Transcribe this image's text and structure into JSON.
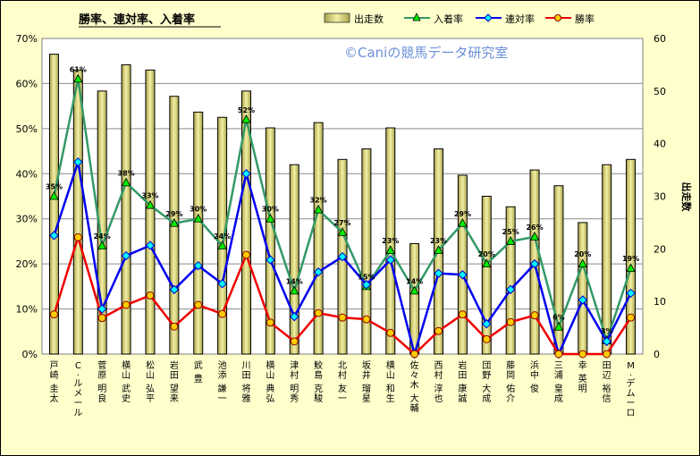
{
  "chart_data": {
    "type": "bar",
    "title": "勝率、連対率、入着率",
    "watermark": "©Caniの競馬データ研究室",
    "y2label": "出走数",
    "ylim": [
      0,
      70
    ],
    "y2lim": [
      0,
      60
    ],
    "yticks": [
      "0%",
      "10%",
      "20%",
      "30%",
      "40%",
      "50%",
      "60%",
      "70%"
    ],
    "y2ticks": [
      "0",
      "10",
      "20",
      "30",
      "40",
      "50",
      "60"
    ],
    "legend_position": "top",
    "categories": [
      "戸崎 圭太",
      "C. ルメール",
      "菅原 明良",
      "横山 武史",
      "松山 弘平",
      "岩田 望来",
      "武 豊",
      "池添 謙一",
      "川田 将雅",
      "横山 典弘",
      "津村 明秀",
      "鮫島 克駿",
      "北村 友一",
      "坂井 瑠星",
      "横山 和生",
      "佐々木 大輔",
      "西村 淳也",
      "岩田 康誠",
      "団野 大成",
      "藤岡 佑介",
      "浜中 俊",
      "三浦 皇成",
      "幸 英明",
      "田辺 裕信",
      "M. デムーロ"
    ],
    "series": [
      {
        "name": "出走数",
        "type": "bar",
        "axis": "right",
        "color": "#e6e68a",
        "values": [
          57,
          54,
          50,
          55,
          54,
          49,
          46,
          45,
          50,
          43,
          36,
          44,
          37,
          39,
          43,
          21,
          39,
          34,
          30,
          28,
          35,
          32,
          25,
          36,
          37
        ]
      },
      {
        "name": "入着率",
        "type": "line",
        "axis": "left",
        "color": "#339966",
        "values": [
          35,
          61,
          24,
          38,
          33,
          29,
          30,
          24,
          52,
          30,
          14,
          32,
          27,
          15,
          23,
          14,
          23,
          29,
          20,
          25,
          26,
          6,
          20,
          3,
          19
        ]
      },
      {
        "name": "連対率",
        "type": "line",
        "axis": "left",
        "color": "#0000ee",
        "values": [
          26.3,
          42.6,
          10,
          21.8,
          24.1,
          14.3,
          19.6,
          15.6,
          40,
          20.9,
          8.3,
          18.2,
          21.6,
          15.4,
          20.9,
          0,
          17.9,
          17.6,
          6.7,
          14.3,
          20,
          0,
          12,
          2.8,
          13.5
        ]
      },
      {
        "name": "勝率",
        "type": "line",
        "axis": "left",
        "color": "#ee0000",
        "values": [
          8.8,
          25.9,
          8,
          10.9,
          13,
          6.1,
          10.9,
          8.9,
          22,
          7,
          2.8,
          9.1,
          8.1,
          7.7,
          4.7,
          0,
          5.1,
          8.8,
          3.3,
          7.1,
          8.6,
          0,
          0,
          0,
          8.1
        ]
      }
    ],
    "data_labels": [
      "35%",
      "61%",
      "24%",
      "38%",
      "33%",
      "29%",
      "30%",
      "24%",
      "52%",
      "30%",
      "14%",
      "32%",
      "27%",
      "15%",
      "23%",
      "14%",
      "23%",
      "29%",
      "20%",
      "25%",
      "26%",
      "6%",
      "20%",
      "3%",
      "19%"
    ]
  }
}
